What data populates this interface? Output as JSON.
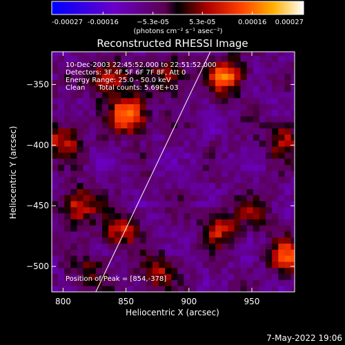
{
  "chart_data": {
    "type": "heatmap",
    "title": "Reconstructed RHESSI Image",
    "xlabel": "Heliocentric X (arcsec)",
    "ylabel": "Heliocentric Y (arcsec)",
    "xlim": [
      791,
      984
    ],
    "ylim": [
      -521,
      -323
    ],
    "x_ticks": [
      800,
      850,
      900,
      950
    ],
    "y_ticks": [
      -350,
      -400,
      -450,
      -500
    ],
    "x_tick_labels": [
      "800",
      "850",
      "900",
      "950"
    ],
    "y_tick_labels": [
      "−350",
      "−400",
      "−450",
      "−500"
    ],
    "colorbar": {
      "min": -0.00027,
      "max": 0.00027,
      "ticks": [
        -0.00027,
        -0.00016,
        -5.3e-05,
        5.3e-05,
        0.00016,
        0.00027
      ],
      "tick_labels": [
        "-0.00027",
        "-0.00016",
        "−5.3e-05",
        "5.3e-05",
        "0.00016",
        "0.00027"
      ],
      "unit_label": "(photons cm⁻² s⁻¹ asec⁻²)"
    },
    "annotations": [
      "10-Dec-2003 22:45:52.000 to 22:51:52.000",
      "Detectors: 3F 4F 5F 6F 7F 8F, Att 0",
      "Energy Range: 25.0 - 50.0 keV",
      "Clean      Total counts: 5.69E+03"
    ],
    "peak_label": "Position of Peak = [854,-378]",
    "peak": [
      854,
      -378
    ],
    "hotspots": [
      {
        "x": 852,
        "y": -375,
        "value": 0.00027
      },
      {
        "x": 930,
        "y": -343,
        "value": 0.00022
      },
      {
        "x": 836,
        "y": -345,
        "value": 0.00018
      },
      {
        "x": 885,
        "y": -343,
        "value": 0.00014
      },
      {
        "x": 800,
        "y": -395,
        "value": 0.00016
      },
      {
        "x": 975,
        "y": -395,
        "value": 0.00014
      },
      {
        "x": 812,
        "y": -450,
        "value": 0.00018
      },
      {
        "x": 845,
        "y": -470,
        "value": 0.00016
      },
      {
        "x": 875,
        "y": -505,
        "value": 0.00014
      },
      {
        "x": 925,
        "y": -470,
        "value": 0.00014
      },
      {
        "x": 952,
        "y": -455,
        "value": 0.0001
      },
      {
        "x": 978,
        "y": -492,
        "value": 0.0002
      },
      {
        "x": 820,
        "y": -505,
        "value": 0.0001
      }
    ],
    "limb_line": [
      [
        826,
        -521
      ],
      [
        917,
        -323
      ]
    ],
    "grid": false
  },
  "footer_date": "7-May-2022 19:06"
}
